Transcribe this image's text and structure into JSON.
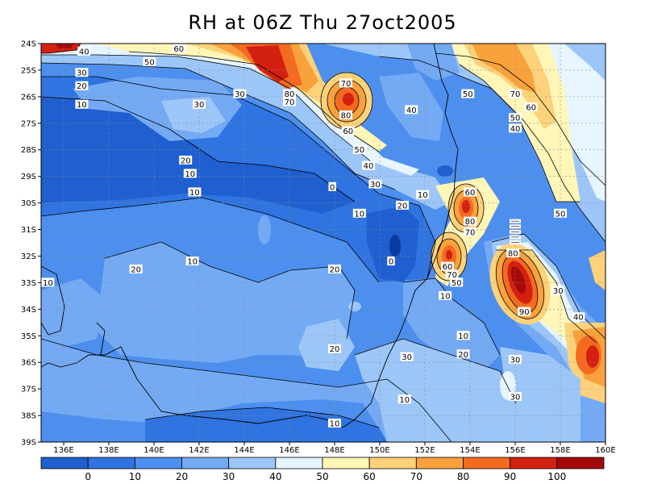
{
  "title": "RH at 06Z Thu 27oct2005",
  "lat_labels": [
    "24S",
    "25S",
    "26S",
    "27S",
    "28S",
    "29S",
    "30S",
    "31S",
    "32S",
    "33S",
    "34S",
    "35S",
    "36S",
    "37S",
    "38S",
    "39S"
  ],
  "lon_labels": [
    "136E",
    "138E",
    "140E",
    "142E",
    "144E",
    "146E",
    "148E",
    "150E",
    "152E",
    "154E",
    "156E",
    "158E",
    "160E"
  ],
  "colorbar": {
    "colors": [
      "#1f5fcf",
      "#2f74e0",
      "#4d8fee",
      "#74aaf4",
      "#9dc6f8",
      "#e6f5ff",
      "#fff6b8",
      "#fdd27a",
      "#f9a23c",
      "#f46a1f",
      "#d42010",
      "#a50a0a"
    ],
    "labels": [
      "0",
      "10",
      "20",
      "30",
      "40",
      "50",
      "60",
      "70",
      "80",
      "90",
      "100"
    ]
  },
  "contour_labels": [
    {
      "text": "40",
      "lon": 136.9,
      "lat": 24.3
    },
    {
      "text": "60",
      "lon": 141.1,
      "lat": 24.2
    },
    {
      "text": "50",
      "lon": 139.8,
      "lat": 24.7
    },
    {
      "text": "30",
      "lon": 136.8,
      "lat": 25.1
    },
    {
      "text": "20",
      "lon": 136.8,
      "lat": 25.6
    },
    {
      "text": "10",
      "lon": 136.8,
      "lat": 26.3
    },
    {
      "text": "30",
      "lon": 142.0,
      "lat": 26.3
    },
    {
      "text": "30",
      "lon": 143.8,
      "lat": 25.9
    },
    {
      "text": "80",
      "lon": 146.0,
      "lat": 25.9
    },
    {
      "text": "70",
      "lon": 146.0,
      "lat": 26.2
    },
    {
      "text": "70",
      "lon": 148.5,
      "lat": 25.5
    },
    {
      "text": "80",
      "lon": 148.5,
      "lat": 26.7
    },
    {
      "text": "60",
      "lon": 148.6,
      "lat": 27.3
    },
    {
      "text": "50",
      "lon": 149.1,
      "lat": 28.0
    },
    {
      "text": "40",
      "lon": 149.5,
      "lat": 28.6
    },
    {
      "text": "30",
      "lon": 149.8,
      "lat": 29.3
    },
    {
      "text": "40",
      "lon": 151.4,
      "lat": 26.5
    },
    {
      "text": "50",
      "lon": 153.9,
      "lat": 25.9
    },
    {
      "text": "70",
      "lon": 156.0,
      "lat": 25.9
    },
    {
      "text": "60",
      "lon": 156.7,
      "lat": 26.4
    },
    {
      "text": "50",
      "lon": 156.0,
      "lat": 26.8
    },
    {
      "text": "40",
      "lon": 156.0,
      "lat": 27.2
    },
    {
      "text": "20",
      "lon": 141.4,
      "lat": 28.4
    },
    {
      "text": "10",
      "lon": 141.6,
      "lat": 28.9
    },
    {
      "text": "10",
      "lon": 141.8,
      "lat": 29.6
    },
    {
      "text": "0",
      "lon": 147.9,
      "lat": 29.4
    },
    {
      "text": "10",
      "lon": 151.9,
      "lat": 29.7
    },
    {
      "text": "20",
      "lon": 151.0,
      "lat": 30.1
    },
    {
      "text": "10",
      "lon": 149.1,
      "lat": 30.4
    },
    {
      "text": "60",
      "lon": 154.0,
      "lat": 29.6
    },
    {
      "text": "80",
      "lon": 154.0,
      "lat": 30.7
    },
    {
      "text": "70",
      "lon": 154.0,
      "lat": 31.1
    },
    {
      "text": "50",
      "lon": 158.0,
      "lat": 30.4
    },
    {
      "text": "10",
      "lon": 141.7,
      "lat": 32.2
    },
    {
      "text": "20",
      "lon": 139.2,
      "lat": 32.5
    },
    {
      "text": "10",
      "lon": 135.3,
      "lat": 33.0
    },
    {
      "text": "20",
      "lon": 148.0,
      "lat": 32.5
    },
    {
      "text": "0",
      "lon": 150.5,
      "lat": 32.2
    },
    {
      "text": "80",
      "lon": 155.9,
      "lat": 31.9
    },
    {
      "text": "60",
      "lon": 153.0,
      "lat": 32.4
    },
    {
      "text": "70",
      "lon": 153.2,
      "lat": 32.7
    },
    {
      "text": "50",
      "lon": 153.4,
      "lat": 33.0
    },
    {
      "text": "10",
      "lon": 152.9,
      "lat": 33.5
    },
    {
      "text": "30",
      "lon": 157.9,
      "lat": 33.3
    },
    {
      "text": "90",
      "lon": 156.4,
      "lat": 34.1
    },
    {
      "text": "40",
      "lon": 158.8,
      "lat": 34.3
    },
    {
      "text": "10",
      "lon": 153.7,
      "lat": 35.0
    },
    {
      "text": "20",
      "lon": 153.7,
      "lat": 35.7
    },
    {
      "text": "20",
      "lon": 148.0,
      "lat": 35.5
    },
    {
      "text": "30",
      "lon": 151.2,
      "lat": 35.8
    },
    {
      "text": "30",
      "lon": 156.0,
      "lat": 35.9
    },
    {
      "text": "30",
      "lon": 156.0,
      "lat": 37.3
    },
    {
      "text": "10",
      "lon": 151.1,
      "lat": 37.4
    },
    {
      "text": "10",
      "lon": 148.0,
      "lat": 38.3
    }
  ],
  "contour_label_markers": [
    {
      "lon": 156.0,
      "lat": 30.7
    },
    {
      "lon": 156.0,
      "lat": 30.9
    },
    {
      "lon": 156.0,
      "lat": 31.1
    },
    {
      "lon": 156.0,
      "lat": 31.3
    },
    {
      "lon": 156.0,
      "lat": 31.5
    }
  ]
}
